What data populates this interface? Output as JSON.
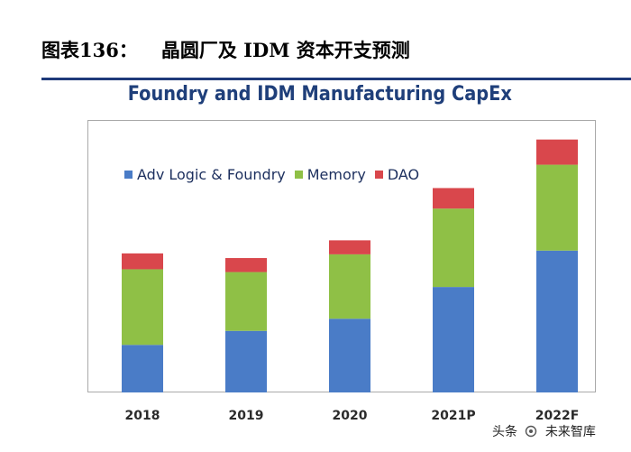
{
  "figure": {
    "title_label": "图表136：",
    "title_text": "晶圆厂及 IDM 资本开支预测"
  },
  "colors": {
    "adv_logic": "#4a7cc7",
    "memory": "#8fc046",
    "dao": "#d9474c",
    "rule": "#1f3a7a",
    "title": "#1f3f7a",
    "axis_text": "#2b2b2b"
  },
  "legend": [
    {
      "label": "Adv Logic & Foundry",
      "color_key": "adv_logic"
    },
    {
      "label": "Memory",
      "color_key": "memory"
    },
    {
      "label": "DAO",
      "color_key": "dao"
    }
  ],
  "chart_data": {
    "type": "bar",
    "stacked": true,
    "title": "Foundry and IDM Manufacturing CapEx",
    "categories": [
      "2018",
      "2019",
      "2020",
      "2021P",
      "2022F"
    ],
    "series": [
      {
        "name": "Adv Logic & Foundry",
        "values": [
          51,
          66,
          79,
          113,
          152
        ]
      },
      {
        "name": "Memory",
        "values": [
          81,
          63,
          69,
          84,
          92
        ]
      },
      {
        "name": "DAO",
        "values": [
          17,
          15,
          15,
          22,
          27
        ]
      }
    ],
    "xlabel": "",
    "ylabel": "",
    "ylim": [
      0,
      290
    ],
    "grid": false,
    "legend_position": "top-left"
  },
  "watermark": {
    "text_left": "头条",
    "text_right": "未来智库"
  }
}
